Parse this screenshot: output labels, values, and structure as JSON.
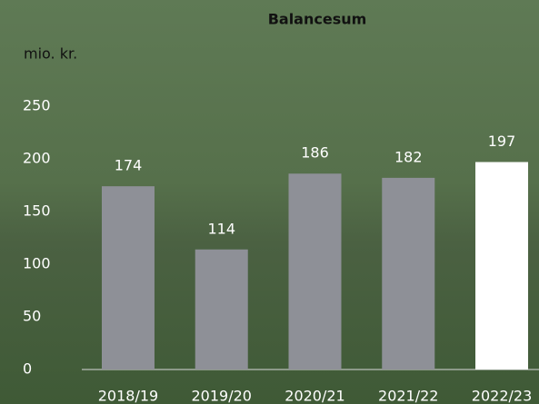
{
  "chart_data": {
    "type": "bar",
    "title": "Balancesum",
    "y_label": "mio. kr.",
    "categories": [
      "2018/19",
      "2019/20",
      "2020/21",
      "2021/22",
      "2022/23"
    ],
    "values": [
      174,
      114,
      186,
      182,
      197
    ],
    "colors": [
      "#8e9097",
      "#8e9097",
      "#8e9097",
      "#8e9097",
      "#ffffff"
    ],
    "ylim": [
      0,
      250
    ],
    "yticks": [
      0,
      50,
      100,
      150,
      200,
      250
    ],
    "grid": false
  }
}
